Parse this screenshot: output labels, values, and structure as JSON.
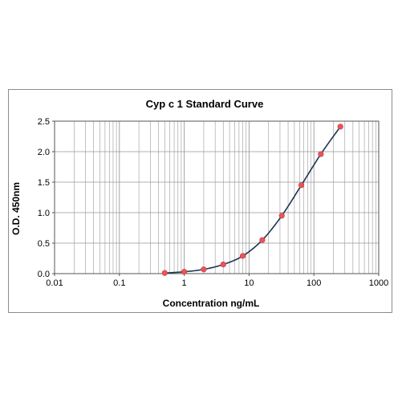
{
  "chart_data": {
    "type": "line",
    "title": "Cyp c 1 Standard Curve",
    "xlabel": "Concentration ng/mL",
    "ylabel": "O.D. 450nm",
    "x_scale": "log",
    "xlim": [
      0.01,
      1000
    ],
    "ylim": [
      0,
      2.5
    ],
    "x_ticks": [
      0.01,
      0.1,
      1,
      10,
      100,
      1000
    ],
    "x_tick_labels": [
      "0.01",
      "0.1",
      "1",
      "10",
      "100",
      "1000"
    ],
    "y_ticks": [
      0,
      0.5,
      1.0,
      1.5,
      2.0,
      2.5
    ],
    "y_tick_labels": [
      "0.0",
      "0.5",
      "1.0",
      "1.5",
      "2.0",
      "2.5"
    ],
    "grid": true,
    "legend": "none",
    "colors": {
      "points": "#e8555a",
      "curve": "#1f3550",
      "grid": "#999999"
    },
    "series": [
      {
        "x": [
          0.5,
          1,
          2,
          4,
          8,
          16,
          32,
          64,
          128,
          256
        ],
        "y": [
          0.01,
          0.03,
          0.07,
          0.15,
          0.29,
          0.55,
          0.95,
          1.45,
          1.96,
          2.41
        ]
      }
    ]
  }
}
